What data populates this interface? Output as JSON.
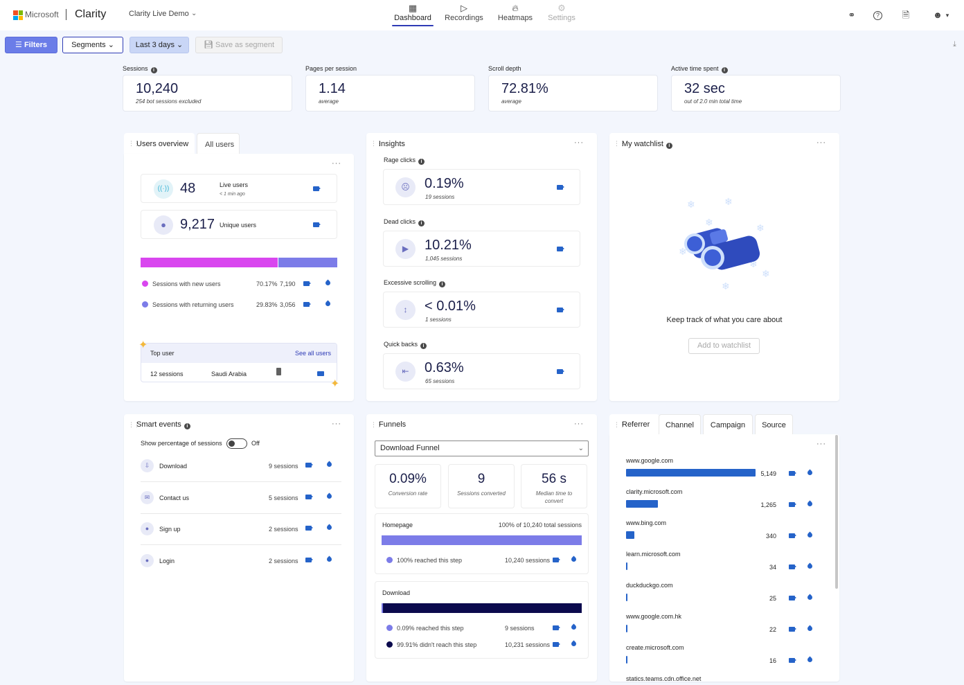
{
  "header": {
    "company": "Microsoft",
    "brand": "Clarity",
    "project": "Clarity Live Demo",
    "nav": [
      {
        "label": "Dashboard",
        "icon": "dashboard-icon"
      },
      {
        "label": "Recordings",
        "icon": "recordings-icon"
      },
      {
        "label": "Heatmaps",
        "icon": "heatmaps-icon"
      },
      {
        "label": "Settings",
        "icon": "settings-icon"
      }
    ],
    "active_tab": "Dashboard",
    "colors": {
      "accent": "#2e3bb5",
      "brand_red": "#f25022",
      "brand_green": "#7fba00",
      "brand_blue": "#00a4ef",
      "brand_yellow": "#ffb900"
    }
  },
  "filterbar": {
    "filters": "Filters",
    "segments": "Segments",
    "date_range": "Last 3 days",
    "save_segment": "Save as segment"
  },
  "metrics": [
    {
      "label": "Sessions",
      "value": "10,240",
      "sub": "254 bot sessions excluded"
    },
    {
      "label": "Pages per session",
      "value": "1.14",
      "sub": "average"
    },
    {
      "label": "Scroll depth",
      "value": "72.81%",
      "sub": "average"
    },
    {
      "label": "Active time spent",
      "value": "32 sec",
      "sub": "out of 2.0 min total time"
    }
  ],
  "users": {
    "tab_overview": "Users overview",
    "tab_all": "All users",
    "live": {
      "value": "48",
      "label": "Live users",
      "sub": "< 1 min ago"
    },
    "unique": {
      "value": "9,217",
      "label": "Unique users"
    },
    "new_share": 0.7017,
    "new": {
      "label": "Sessions with new users",
      "pct": "70.17%",
      "count": "7,190",
      "color": "#d946ef"
    },
    "returning": {
      "label": "Sessions with returning users",
      "pct": "29.83%",
      "count": "3,056",
      "color": "#7c7ce8"
    },
    "top_user": {
      "title": "Top user",
      "link": "See all users",
      "sessions": "12 sessions",
      "country": "Saudi Arabia"
    }
  },
  "insights": {
    "title": "Insights",
    "items": [
      {
        "label": "Rage clicks",
        "value": "0.19%",
        "sub": "19 sessions",
        "icon": "angry-face-icon"
      },
      {
        "label": "Dead clicks",
        "value": "10.21%",
        "sub": "1,045 sessions",
        "icon": "cursor-icon"
      },
      {
        "label": "Excessive scrolling",
        "value": "< 0.01%",
        "sub": "1 sessions",
        "icon": "scroll-icon"
      },
      {
        "label": "Quick backs",
        "value": "0.63%",
        "sub": "65 sessions",
        "icon": "back-icon"
      }
    ]
  },
  "watchlist": {
    "title": "My watchlist",
    "message": "Keep track of what you care about",
    "button": "Add to watchlist"
  },
  "smart_events": {
    "title": "Smart events",
    "toggle_label": "Show percentage of sessions",
    "toggle_state": "Off",
    "items": [
      {
        "label": "Download",
        "sessions": "9 sessions",
        "icon": "download-icon"
      },
      {
        "label": "Contact us",
        "sessions": "5 sessions",
        "icon": "contact-icon"
      },
      {
        "label": "Sign up",
        "sessions": "2 sessions",
        "icon": "signup-icon"
      },
      {
        "label": "Login",
        "sessions": "2 sessions",
        "icon": "login-icon"
      }
    ]
  },
  "funnels": {
    "title": "Funnels",
    "selected": "Download Funnel",
    "kpis": [
      {
        "value": "0.09%",
        "label": "Conversion rate"
      },
      {
        "value": "9",
        "label": "Sessions converted"
      },
      {
        "value": "56 s",
        "label": "Median time to convert"
      }
    ],
    "step1": {
      "name": "Homepage",
      "total": "100% of 10,240 total sessions",
      "reached": "100% reached this step",
      "sessions": "10,240 sessions",
      "fraction": 1.0
    },
    "step2": {
      "name": "Download",
      "reached": "0.09% reached this step",
      "reached_sessions": "9 sessions",
      "dropped": "99.91% didn't reach this step",
      "dropped_sessions": "10,231 sessions",
      "fraction": 0.0009
    }
  },
  "referrer": {
    "tabs": [
      "Referrer",
      "Channel",
      "Campaign",
      "Source"
    ],
    "items": [
      {
        "name": "www.google.com",
        "count": "5,149",
        "value": 5149
      },
      {
        "name": "clarity.microsoft.com",
        "count": "1,265",
        "value": 1265
      },
      {
        "name": "www.bing.com",
        "count": "340",
        "value": 340
      },
      {
        "name": "learn.microsoft.com",
        "count": "34",
        "value": 34
      },
      {
        "name": "duckduckgo.com",
        "count": "25",
        "value": 25
      },
      {
        "name": "www.google.com.hk",
        "count": "22",
        "value": 22
      },
      {
        "name": "create.microsoft.com",
        "count": "16",
        "value": 16
      },
      {
        "name": "statics.teams.cdn.office.net",
        "count": "",
        "value": null
      }
    ]
  }
}
